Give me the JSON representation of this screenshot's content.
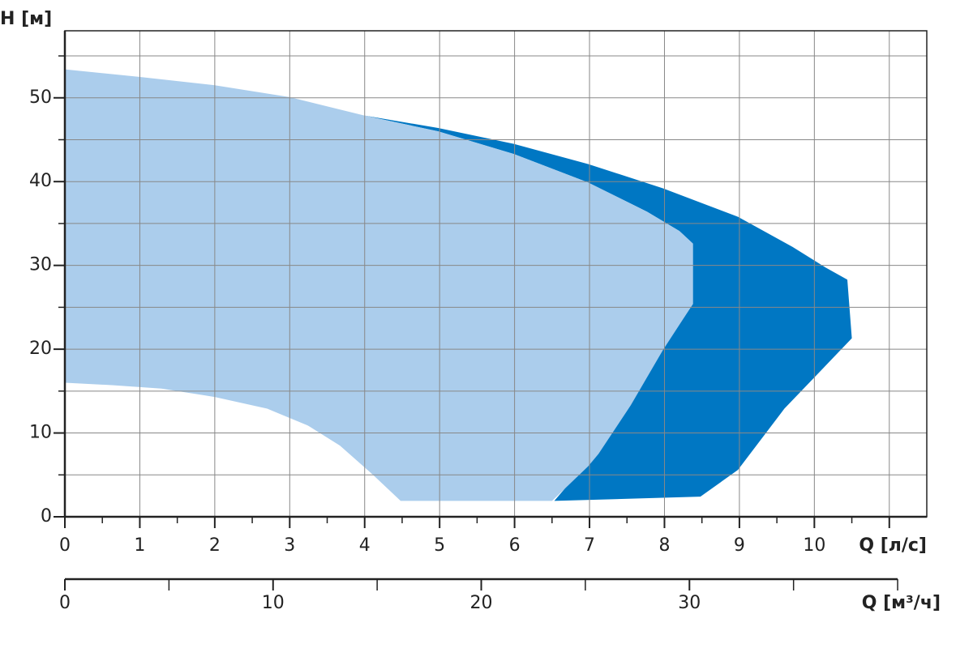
{
  "chart_data": {
    "type": "area",
    "y_label": "H [м]",
    "x_label": "Q [л/с]",
    "x2_label": "Q [м³/ч]",
    "xlim": [
      0,
      11.5
    ],
    "ylim": [
      0,
      58
    ],
    "x2lim": [
      0,
      41.4
    ],
    "xticks": [
      0,
      1,
      2,
      3,
      4,
      5,
      6,
      7,
      8,
      9,
      10
    ],
    "xminor": [
      0.5,
      1.5,
      2.5,
      3.5,
      4.5,
      5.5,
      6.5,
      7.5,
      8.5,
      9.5,
      10.5,
      11
    ],
    "yticks": [
      0,
      10,
      20,
      30,
      40,
      50
    ],
    "yminor": [
      5,
      15,
      25,
      35,
      45,
      55
    ],
    "x2ticks": [
      0,
      10,
      20,
      30
    ],
    "x2minor": [
      5,
      15,
      25,
      35,
      40
    ],
    "grid": true,
    "regions": [
      {
        "color": "#0077c3",
        "x": [
          3.99,
          4.98,
          5.99,
          6.98,
          7.98,
          8.98,
          9.71,
          10.14,
          10.44,
          10.5,
          9.6,
          8.98,
          8.48,
          6.53,
          6.98,
          8.38,
          8.38,
          8.2,
          7.77,
          6.98,
          5.99,
          4.98
        ],
        "y": [
          47.9,
          46.4,
          44.5,
          42.1,
          39.2,
          35.8,
          32.2,
          29.8,
          28.3,
          21.3,
          12.9,
          5.6,
          2.4,
          1.9,
          6.6,
          25.4,
          32.6,
          34.1,
          36.4,
          39.9,
          43.3,
          46.0
        ]
      },
      {
        "color": "#abcdec",
        "x": [
          0,
          0.99,
          2.0,
          2.99,
          3.99,
          4.98,
          5.99,
          6.98,
          7.77,
          8.2,
          8.38,
          8.38,
          7.98,
          7.55,
          7.12,
          6.98,
          6.5,
          4.48,
          4.1,
          3.67,
          3.24,
          2.7,
          2.0,
          1.29,
          0.65,
          0
        ],
        "y": [
          53.4,
          52.5,
          51.5,
          50.1,
          47.9,
          46.0,
          43.3,
          39.9,
          36.4,
          34.1,
          32.6,
          25.4,
          19.9,
          13.3,
          7.5,
          6.0,
          1.9,
          1.9,
          5.1,
          8.5,
          10.9,
          12.9,
          14.3,
          15.3,
          15.7,
          16.0
        ]
      }
    ]
  }
}
